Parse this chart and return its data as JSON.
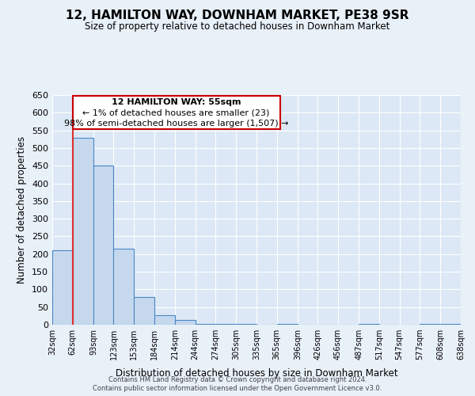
{
  "title": "12, HAMILTON WAY, DOWNHAM MARKET, PE38 9SR",
  "subtitle": "Size of property relative to detached houses in Downham Market",
  "xlabel": "Distribution of detached houses by size in Downham Market",
  "ylabel": "Number of detached properties",
  "footer_line1": "Contains HM Land Registry data © Crown copyright and database right 2024.",
  "footer_line2": "Contains public sector information licensed under the Open Government Licence v3.0.",
  "bin_edges": [
    32,
    62,
    93,
    123,
    153,
    184,
    214,
    244,
    274,
    305,
    335,
    365,
    396,
    426,
    456,
    487,
    517,
    547,
    577,
    608,
    638
  ],
  "bar_heights": [
    210,
    530,
    450,
    215,
    78,
    28,
    14,
    2,
    2,
    2,
    0,
    2,
    0,
    0,
    0,
    2,
    0,
    0,
    2,
    2
  ],
  "bar_color": "#c5d8ed",
  "bar_edge_color": "#4a86c8",
  "bar_edge_width": 0.8,
  "red_line_x": 62,
  "red_line_color": "#e03030",
  "ylim": [
    0,
    650
  ],
  "yticks": [
    0,
    50,
    100,
    150,
    200,
    250,
    300,
    350,
    400,
    450,
    500,
    550,
    600,
    650
  ],
  "annotation_text_line1": "12 HAMILTON WAY: 55sqm",
  "annotation_text_line2": "← 1% of detached houses are smaller (23)",
  "annotation_text_line3": "98% of semi-detached houses are larger (1,507) →",
  "annotation_box_color": "#ffffff",
  "annotation_box_edge_color": "#cc0000",
  "bg_color": "#e8f0f8",
  "grid_color": "#ffffff",
  "axes_bg_color": "#dce8f5"
}
